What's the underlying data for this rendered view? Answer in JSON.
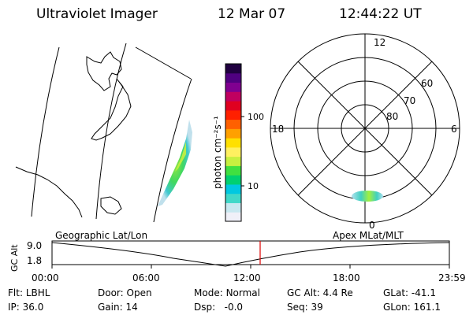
{
  "header": {
    "instrument": "Ultraviolet Imager",
    "date": "12 Mar 07",
    "time": "12:44:22 UT"
  },
  "colorbar": {
    "label": "photon cm⁻²s⁻¹",
    "ticks": [
      "100",
      "10"
    ],
    "colors": [
      "#f0f0f8",
      "#c8e8f0",
      "#40d8c8",
      "#00c8e0",
      "#00d070",
      "#40e040",
      "#c8f040",
      "#fff060",
      "#ffe000",
      "#ffa000",
      "#ff6000",
      "#ff2000",
      "#e00020",
      "#c00060",
      "#800090",
      "#500080",
      "#200040"
    ]
  },
  "polar_plot": {
    "mlt_labels": {
      "top": "12",
      "left": "18",
      "right": "6",
      "bottom": "0"
    },
    "lat_labels": [
      "60",
      "70",
      "80"
    ]
  },
  "timeline": {
    "left_label": "Geographic Lat/Lon",
    "right_label": "Apex MLat/MLT",
    "yaxis_label": "GC Alt",
    "y_top": "9.0",
    "y_bottom": "1.8",
    "x_ticks": [
      "00:00",
      "06:00",
      "12:00",
      "18:00",
      "23:59"
    ],
    "marker_color": "#e00000"
  },
  "status": {
    "row1": [
      {
        "key": "Flt:",
        "val": "LBHL"
      },
      {
        "key": "Door:",
        "val": "Open"
      },
      {
        "key": "Mode:",
        "val": "Normal"
      },
      {
        "key": "GC Alt:",
        "val": "4.4 Re"
      },
      {
        "key": "GLat:",
        "val": "-41.1"
      }
    ],
    "row2": [
      {
        "key": "IP:",
        "val": "36.0"
      },
      {
        "key": "Gain:",
        "val": "14"
      },
      {
        "key": "Dsp:",
        "val": "-0.0"
      },
      {
        "key": "Seq:",
        "val": "39"
      },
      {
        "key": "GLon:",
        "val": "161.1"
      }
    ]
  }
}
